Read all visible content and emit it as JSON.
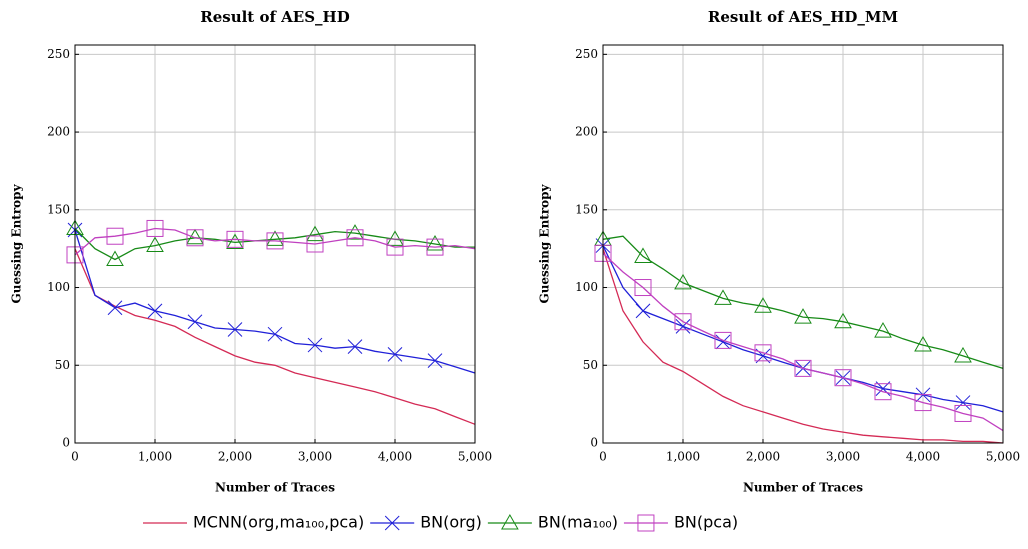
{
  "chart_data": [
    {
      "type": "line",
      "title": "Result of AES_HD",
      "x_label": "Number of Traces",
      "y_label": "Guessing Entropy",
      "x": [
        0,
        250,
        500,
        750,
        1000,
        1250,
        1500,
        1750,
        2000,
        2250,
        2500,
        2750,
        3000,
        3250,
        3500,
        3750,
        4000,
        4250,
        4500,
        4750,
        5000
      ],
      "xlim": [
        0,
        5000
      ],
      "ylim": [
        0,
        256
      ],
      "grid": true,
      "xticks": [
        0,
        {
          "value": 1000,
          "label": "1,000"
        },
        {
          "value": 2000,
          "label": "2,000"
        },
        {
          "value": 3000,
          "label": "3,000"
        },
        {
          "value": 4000,
          "label": "4,000"
        },
        {
          "value": 5000,
          "label": "5,000"
        }
      ],
      "yticks": [
        0,
        50,
        100,
        150,
        200,
        250
      ],
      "series": [
        {
          "name": "MCNN(org,ma₁₀₀,pca)",
          "color": "#d42a55",
          "marker": "none",
          "values": [
            125,
            95,
            88,
            82,
            79,
            75,
            68,
            62,
            56,
            52,
            50,
            45,
            42,
            39,
            36,
            33,
            29,
            25,
            22,
            17,
            12
          ]
        },
        {
          "name": "BN(org)",
          "color": "#2020d8",
          "marker": "x",
          "values": [
            137,
            95,
            87,
            90,
            85,
            82,
            78,
            74,
            73,
            72,
            70,
            64,
            63,
            61,
            62,
            59,
            57,
            55,
            53,
            49,
            45
          ]
        },
        {
          "name": "BN(ma₁₀₀)",
          "color": "#178a17",
          "marker": "triangle",
          "values": [
            138,
            125,
            118,
            125,
            127,
            130,
            132,
            131,
            129,
            130,
            131,
            132,
            134,
            136,
            135,
            133,
            131,
            130,
            128,
            126,
            126
          ]
        },
        {
          "name": "BN(pca)",
          "color": "#c040c0",
          "marker": "square",
          "values": [
            121,
            132,
            133,
            135,
            138,
            137,
            132,
            130,
            131,
            130,
            130,
            129,
            128,
            130,
            132,
            130,
            126,
            127,
            126,
            127,
            125
          ]
        }
      ]
    },
    {
      "type": "line",
      "title": "Result of AES_HD_MM",
      "x_label": "Number of Traces",
      "y_label": "Guessing Entropy",
      "x": [
        0,
        250,
        500,
        750,
        1000,
        1250,
        1500,
        1750,
        2000,
        2250,
        2500,
        2750,
        3000,
        3250,
        3500,
        3750,
        4000,
        4250,
        4500,
        4750,
        5000
      ],
      "xlim": [
        0,
        5000
      ],
      "ylim": [
        0,
        256
      ],
      "grid": true,
      "xticks": [
        0,
        {
          "value": 1000,
          "label": "1,000"
        },
        {
          "value": 2000,
          "label": "2,000"
        },
        {
          "value": 3000,
          "label": "3,000"
        },
        {
          "value": 4000,
          "label": "4,000"
        },
        {
          "value": 5000,
          "label": "5,000"
        }
      ],
      "yticks": [
        0,
        50,
        100,
        150,
        200,
        250
      ],
      "series": [
        {
          "color": "#d42a55",
          "marker": "none",
          "values": [
            125,
            85,
            65,
            52,
            46,
            38,
            30,
            24,
            20,
            16,
            12,
            9,
            7,
            5,
            4,
            3,
            2,
            2,
            1,
            1,
            0
          ]
        },
        {
          "color": "#2020d8",
          "marker": "x",
          "values": [
            127,
            100,
            85,
            80,
            75,
            70,
            65,
            60,
            56,
            52,
            48,
            45,
            42,
            39,
            35,
            33,
            31,
            28,
            26,
            24,
            20
          ]
        },
        {
          "color": "#178a17",
          "marker": "triangle",
          "values": [
            131,
            133,
            120,
            112,
            103,
            98,
            93,
            90,
            88,
            85,
            81,
            80,
            78,
            75,
            72,
            67,
            63,
            60,
            56,
            52,
            48
          ]
        },
        {
          "color": "#c040c0",
          "marker": "square",
          "values": [
            122,
            110,
            100,
            88,
            78,
            72,
            66,
            62,
            58,
            54,
            48,
            45,
            42,
            38,
            33,
            30,
            26,
            23,
            19,
            16,
            8
          ]
        }
      ]
    }
  ]
}
